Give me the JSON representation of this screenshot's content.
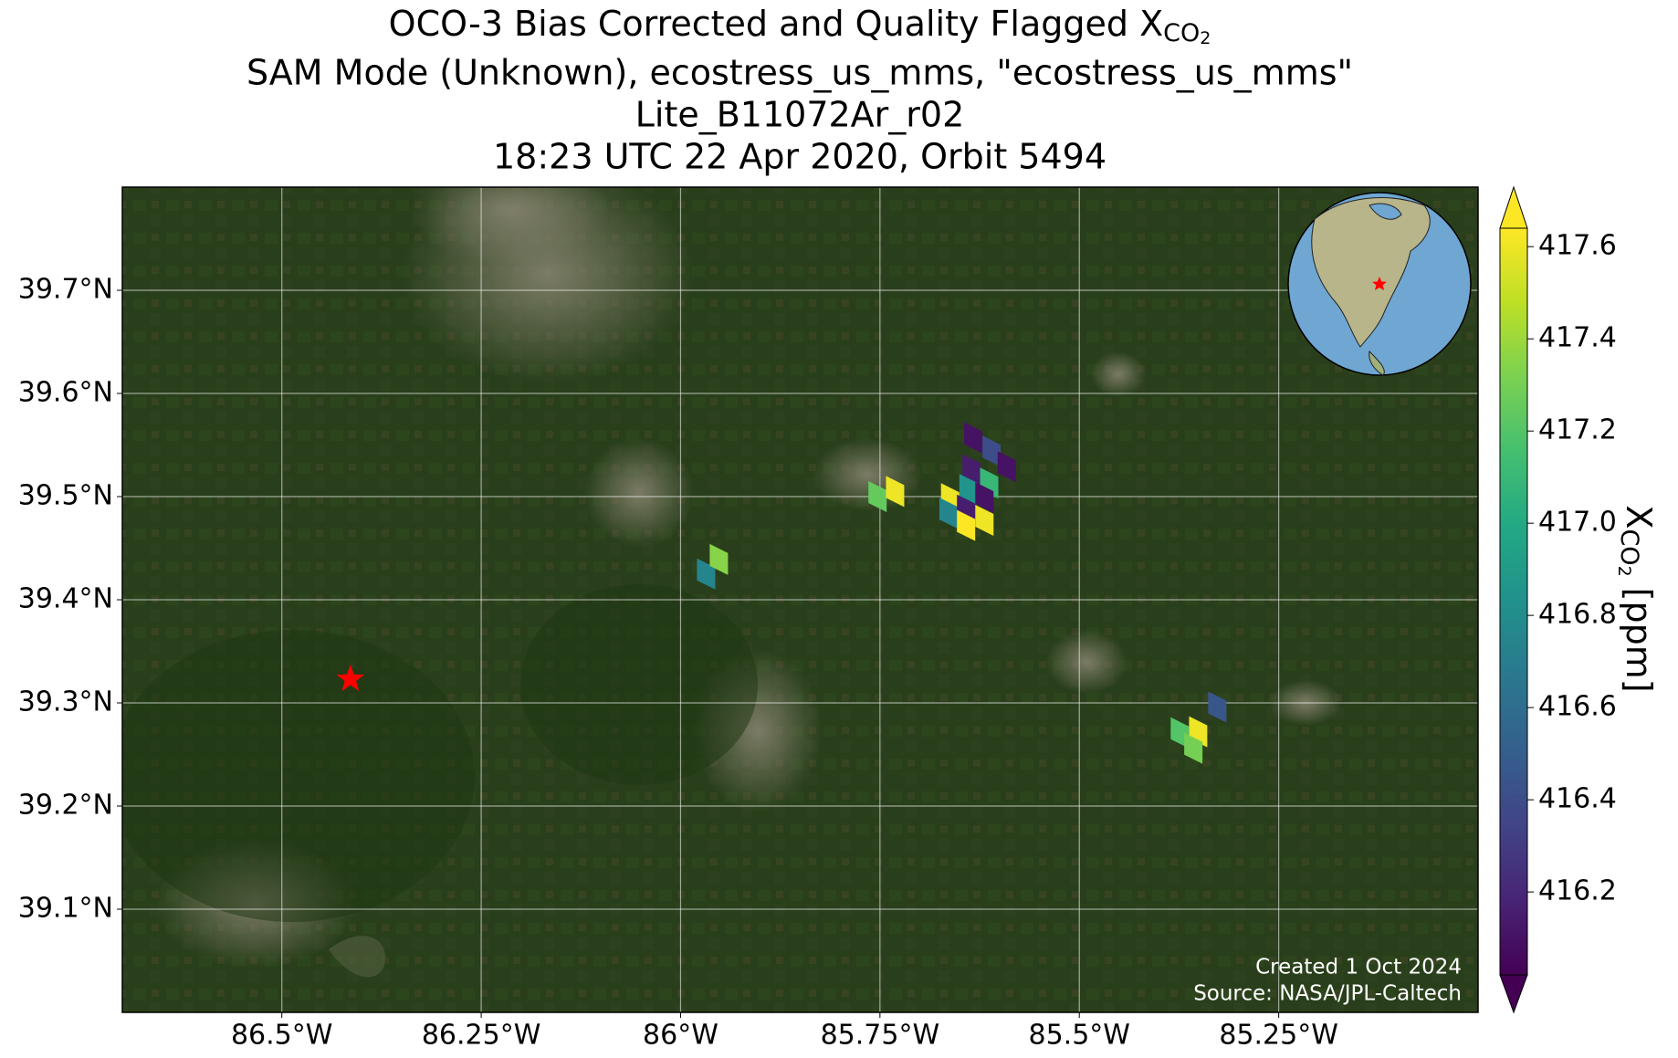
{
  "title": {
    "text": "OCO-3 Bias Corrected and Quality Flagged X",
    "sub": "CO",
    "subsub": "2"
  },
  "subtitle_lines": [
    "SAM Mode (Unknown), ecostress_us_mms, \"ecostress_us_mms\"",
    "Lite_B11072Ar_r02",
    "18:23 UTC 22 Apr 2020, Orbit 5494"
  ],
  "map": {
    "xlim": [
      -86.7,
      -85.0
    ],
    "ylim": [
      39.0,
      39.8
    ],
    "grid": true,
    "xticks": [
      {
        "value": -86.5,
        "label": "86.5°W"
      },
      {
        "value": -86.25,
        "label": "86.25°W"
      },
      {
        "value": -86,
        "label": "86°W"
      },
      {
        "value": -85.75,
        "label": "85.75°W"
      },
      {
        "value": -85.5,
        "label": "85.5°W"
      },
      {
        "value": -85.25,
        "label": "85.25°W"
      }
    ],
    "yticks": [
      {
        "value": 39.1,
        "label": "39.1°N"
      },
      {
        "value": 39.2,
        "label": "39.2°N"
      },
      {
        "value": 39.3,
        "label": "39.3°N"
      },
      {
        "value": 39.4,
        "label": "39.4°N"
      },
      {
        "value": 39.5,
        "label": "39.5°N"
      },
      {
        "value": 39.6,
        "label": "39.6°N"
      },
      {
        "value": 39.7,
        "label": "39.7°N"
      }
    ],
    "site": {
      "lon": -86.414,
      "lat": 39.323
    },
    "soundings": [
      {
        "lon": -85.968,
        "lat": 39.425,
        "xco2": 416.75
      },
      {
        "lon": -85.952,
        "lat": 39.439,
        "xco2": 417.35
      },
      {
        "lon": -85.753,
        "lat": 39.5,
        "xco2": 417.25
      },
      {
        "lon": -85.731,
        "lat": 39.505,
        "xco2": 417.6
      },
      {
        "lon": -85.633,
        "lat": 39.557,
        "xco2": 416.1
      },
      {
        "lon": -85.61,
        "lat": 39.544,
        "xco2": 416.4
      },
      {
        "lon": -85.591,
        "lat": 39.529,
        "xco2": 416.1
      },
      {
        "lon": -85.635,
        "lat": 39.526,
        "xco2": 416.15
      },
      {
        "lon": -85.613,
        "lat": 39.513,
        "xco2": 417.1
      },
      {
        "lon": -85.639,
        "lat": 39.507,
        "xco2": 416.85
      },
      {
        "lon": -85.619,
        "lat": 39.499,
        "xco2": 416.1
      },
      {
        "lon": -85.662,
        "lat": 39.498,
        "xco2": 417.6
      },
      {
        "lon": -85.664,
        "lat": 39.484,
        "xco2": 416.75
      },
      {
        "lon": -85.642,
        "lat": 39.487,
        "xco2": 416.15
      },
      {
        "lon": -85.642,
        "lat": 39.472,
        "xco2": 417.65
      },
      {
        "lon": -85.619,
        "lat": 39.477,
        "xco2": 417.6
      },
      {
        "lon": -85.374,
        "lat": 39.271,
        "xco2": 417.2
      },
      {
        "lon": -85.351,
        "lat": 39.272,
        "xco2": 417.6
      },
      {
        "lon": -85.357,
        "lat": 39.256,
        "xco2": 417.3
      },
      {
        "lon": -85.327,
        "lat": 39.296,
        "xco2": 416.45
      }
    ]
  },
  "colorbar": {
    "clim": [
      416.02,
      417.64
    ],
    "ticks": [
      416.2,
      416.4,
      416.6,
      416.8,
      {
        "value": 417,
        "label": "417.0"
      },
      417.2,
      417.4,
      417.6
    ],
    "label": {
      "text": "X",
      "sub": "CO",
      "subsub": "2",
      "unit": "[ppm]"
    }
  },
  "footer": [
    "Created 1 Oct 2024",
    "Source: NASA/JPL-Caltech"
  ]
}
